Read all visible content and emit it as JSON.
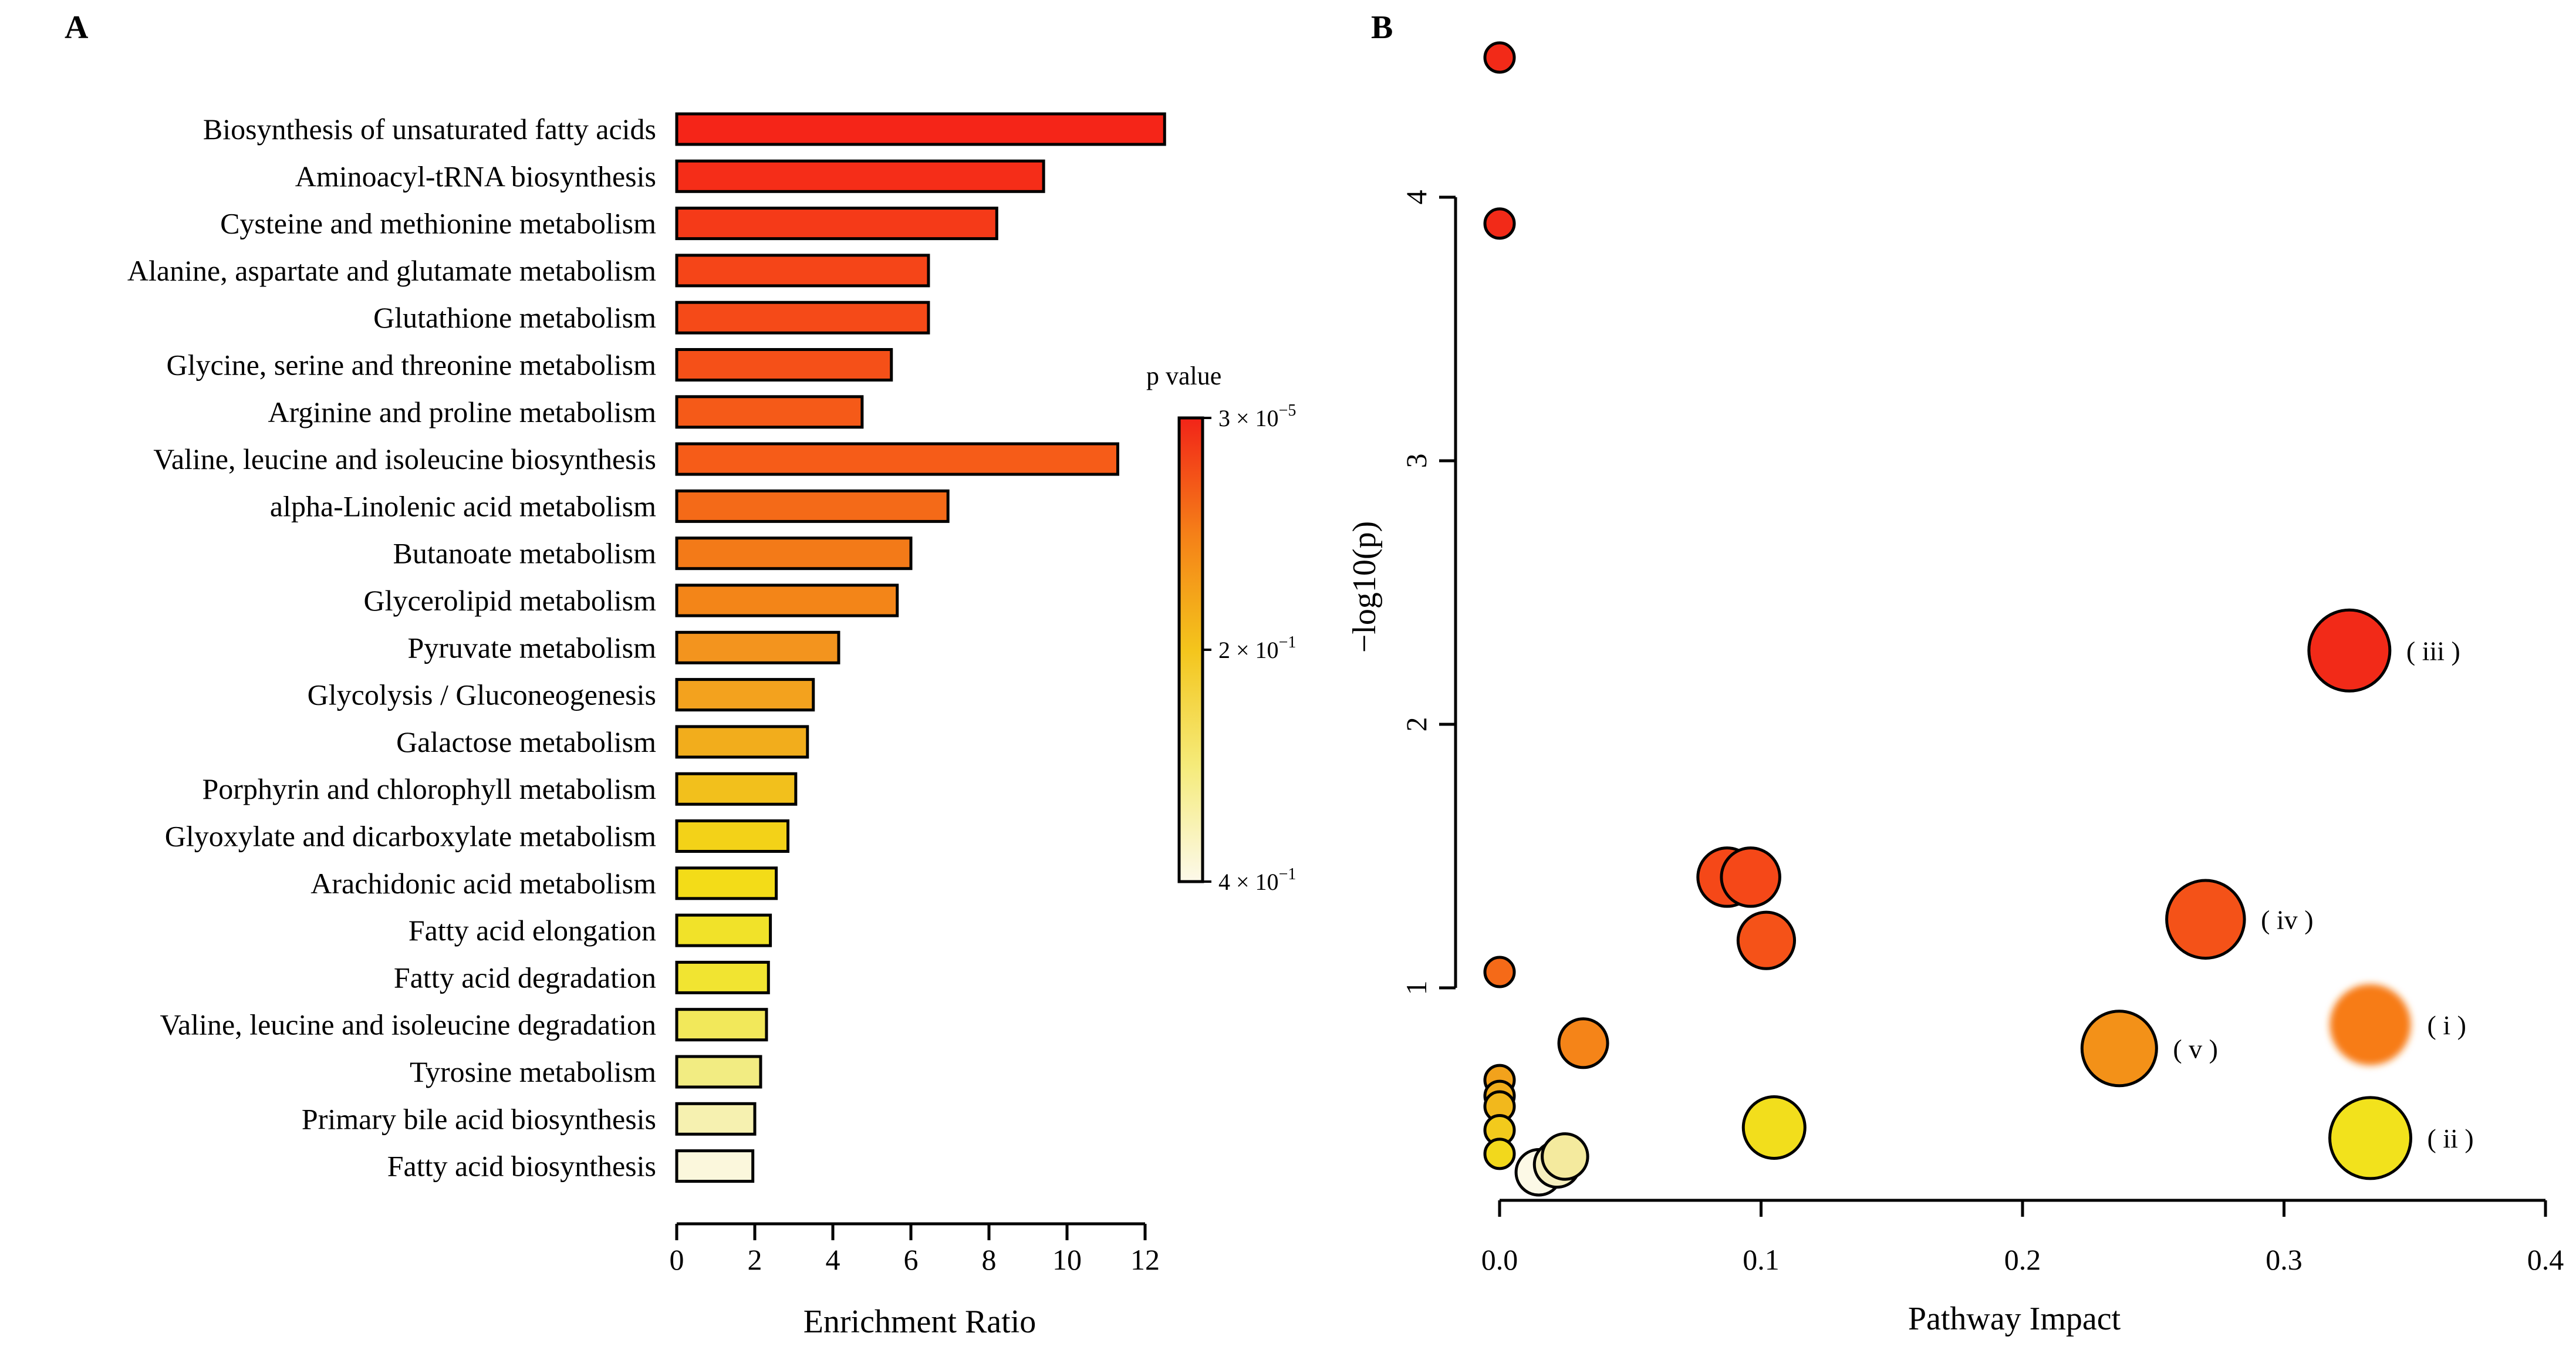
{
  "panels": {
    "a_label": "A",
    "b_label": "B"
  },
  "chart_data": [
    {
      "type": "bar",
      "orientation": "horizontal",
      "panel": "A",
      "title": "",
      "xlabel": "Enrichment Ratio",
      "ylabel": "",
      "xlim": [
        0,
        12.5
      ],
      "xticks": [
        0,
        2,
        4,
        6,
        8,
        10,
        12
      ],
      "categories": [
        "Biosynthesis of unsaturated fatty acids",
        "Aminoacyl-tRNA biosynthesis",
        "Cysteine and methionine metabolism",
        "Alanine, aspartate and glutamate metabolism",
        "Glutathione metabolism",
        "Glycine, serine and threonine metabolism",
        "Arginine and proline metabolism",
        "Valine, leucine and isoleucine biosynthesis",
        "alpha-Linolenic acid metabolism",
        "Butanoate metabolism",
        "Glycerolipid metabolism",
        "Pyruvate metabolism",
        "Glycolysis / Gluconeogenesis",
        "Galactose metabolism",
        "Porphyrin and chlorophyll metabolism",
        "Glyoxylate and dicarboxylate metabolism",
        "Arachidonic acid metabolism",
        "Fatty acid elongation",
        "Fatty acid degradation",
        "Valine, leucine and isoleucine degradation",
        "Tyrosine metabolism",
        "Primary bile acid biosynthesis",
        "Fatty acid biosynthesis"
      ],
      "values": [
        12.5,
        9.4,
        8.2,
        6.45,
        6.45,
        5.5,
        4.75,
        11.3,
        6.95,
        6.0,
        5.65,
        4.15,
        3.5,
        3.35,
        3.05,
        2.85,
        2.55,
        2.4,
        2.35,
        2.3,
        2.15,
        2.0,
        1.95
      ],
      "colors": [
        "#f52518",
        "#f52d18",
        "#f53a18",
        "#f54518",
        "#f54a18",
        "#f55018",
        "#f55a18",
        "#f65c18",
        "#f46a18",
        "#f37a18",
        "#f38518",
        "#f3941e",
        "#f3a21e",
        "#f2ad1c",
        "#f2c01c",
        "#f3d218",
        "#f3dc18",
        "#f1e229",
        "#f1e431",
        "#f2e85a",
        "#f2ec82",
        "#f6f1b0",
        "#fbf7dc"
      ],
      "legend": {
        "title": "p value",
        "ticks": [
          {
            "mant": "3 × 10",
            "exp": "−5"
          },
          {
            "mant": "2 × 10",
            "exp": "−1"
          },
          {
            "mant": "4 × 10",
            "exp": "−1"
          }
        ],
        "gradient": [
          "#f22418",
          "#f58018",
          "#f4c51c",
          "#f5eb7a",
          "#fcf9ea"
        ]
      }
    },
    {
      "type": "scatter",
      "panel": "B",
      "title": "",
      "xlabel": "Pathway Impact",
      "ylabel": "−log10(p)",
      "xlim": [
        0,
        0.4
      ],
      "ylim": [
        0.2,
        4.7
      ],
      "xticks": [
        "0.0",
        "0.1",
        "0.2",
        "0.3",
        "0.4"
      ],
      "yticks": [
        "1",
        "2",
        "3",
        "4"
      ],
      "points": [
        {
          "x": 0.0,
          "y": 4.53,
          "size": 0.2,
          "color": "#f22a18"
        },
        {
          "x": 0.0,
          "y": 3.9,
          "size": 0.2,
          "color": "#f22a18"
        },
        {
          "x": 0.0,
          "y": 1.06,
          "size": 0.2,
          "color": "#f56a18"
        },
        {
          "x": 0.0,
          "y": 0.65,
          "size": 0.2,
          "color": "#f2a21c"
        },
        {
          "x": 0.0,
          "y": 0.59,
          "size": 0.2,
          "color": "#f2ae1c"
        },
        {
          "x": 0.0,
          "y": 0.55,
          "size": 0.2,
          "color": "#f2b81c"
        },
        {
          "x": 0.0,
          "y": 0.46,
          "size": 0.2,
          "color": "#f2ca1c"
        },
        {
          "x": 0.0,
          "y": 0.37,
          "size": 0.2,
          "color": "#f2d81c"
        },
        {
          "x": 0.015,
          "y": 0.3,
          "size": 0.45,
          "color": "#fcf9e6"
        },
        {
          "x": 0.022,
          "y": 0.33,
          "size": 0.45,
          "color": "#f6efbe"
        },
        {
          "x": 0.025,
          "y": 0.36,
          "size": 0.45,
          "color": "#f4ea9e"
        },
        {
          "x": 0.032,
          "y": 0.79,
          "size": 0.5,
          "color": "#f58418"
        },
        {
          "x": 0.087,
          "y": 1.42,
          "size": 0.65,
          "color": "#f54818"
        },
        {
          "x": 0.096,
          "y": 1.42,
          "size": 0.65,
          "color": "#f54818"
        },
        {
          "x": 0.102,
          "y": 1.18,
          "size": 0.62,
          "color": "#f55218"
        },
        {
          "x": 0.105,
          "y": 0.47,
          "size": 0.7,
          "color": "#f2de1c"
        },
        {
          "x": 0.237,
          "y": 0.77,
          "size": 0.9,
          "color": "#f39118",
          "label": "( v )"
        },
        {
          "x": 0.27,
          "y": 1.26,
          "size": 0.95,
          "color": "#f45218",
          "label": "( iv )"
        },
        {
          "x": 0.325,
          "y": 2.28,
          "size": 1.0,
          "color": "#f22a18",
          "label": "( iii )"
        },
        {
          "x": 0.333,
          "y": 0.86,
          "size": 1.0,
          "color": "#f77c18",
          "label": "( i )",
          "soft": true
        },
        {
          "x": 0.333,
          "y": 0.43,
          "size": 1.0,
          "color": "#f2e21c",
          "label": "( ii )"
        }
      ]
    }
  ]
}
